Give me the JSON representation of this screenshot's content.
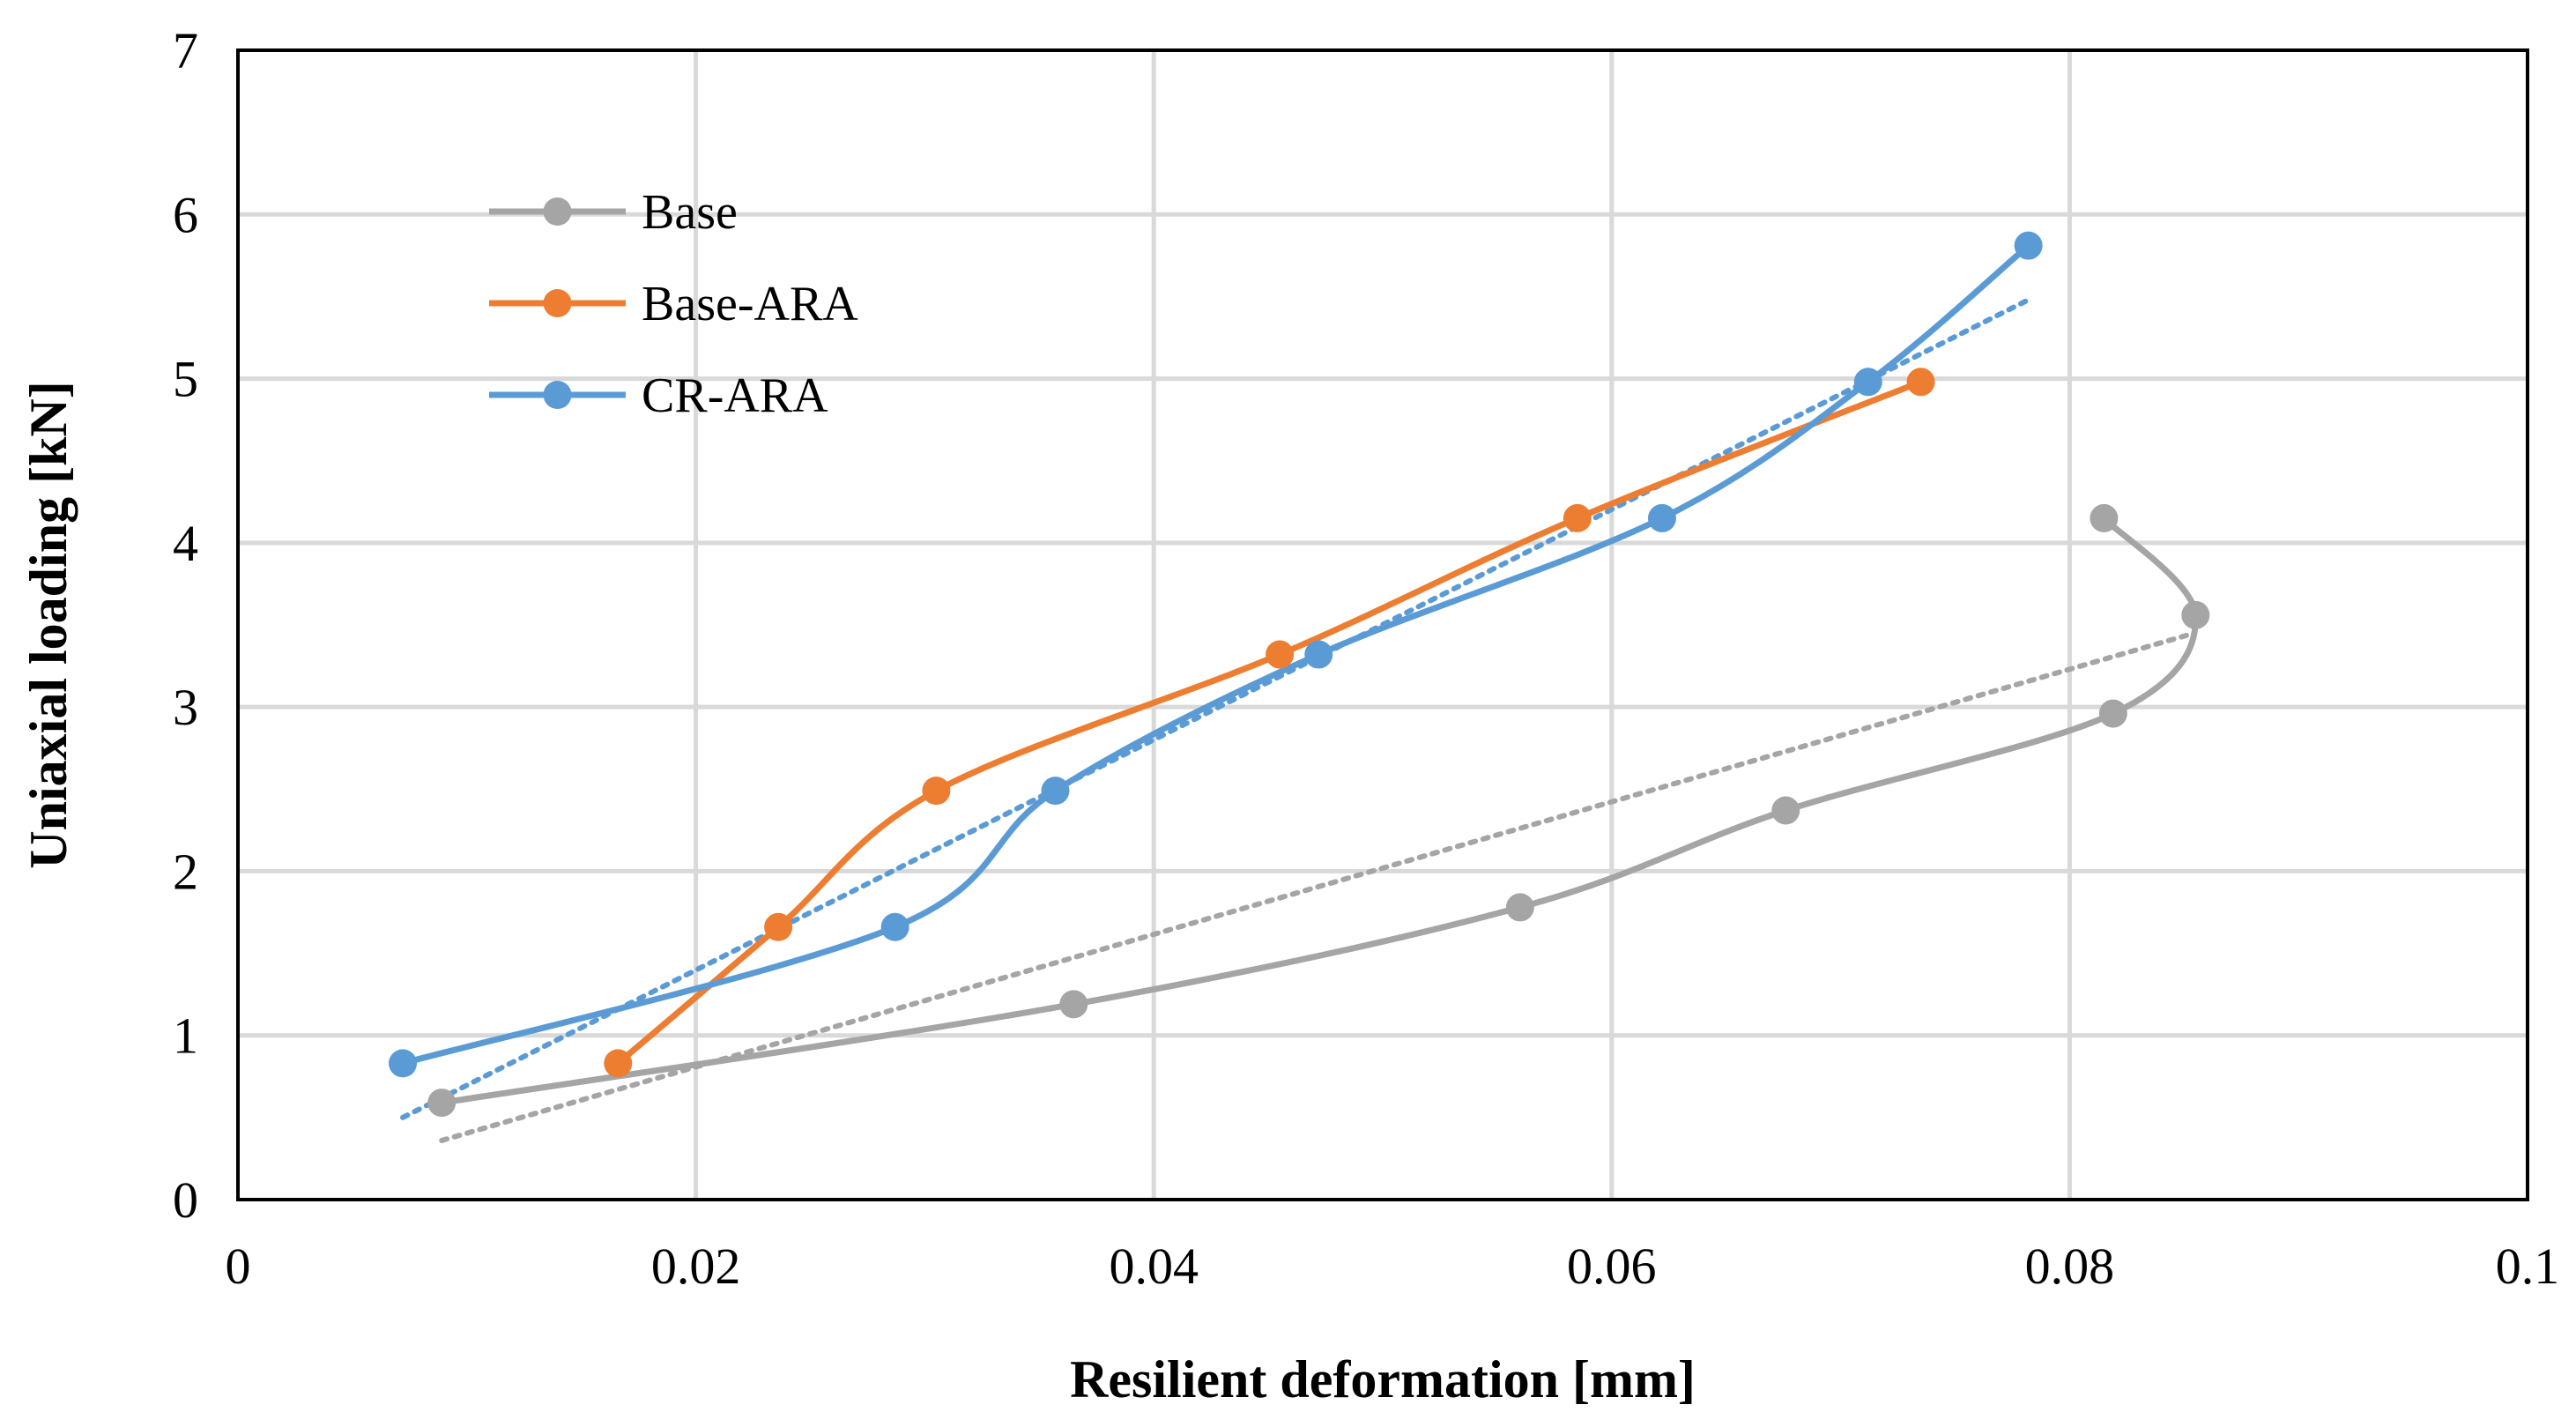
{
  "chart_data": {
    "type": "line",
    "title": "",
    "xlabel": "Resilient deformation [mm]",
    "ylabel": "Uniaxial loading [kN]",
    "xlim": [
      0,
      0.1
    ],
    "ylim": [
      0,
      7
    ],
    "x_ticks": [
      0,
      0.02,
      0.04,
      0.06,
      0.08,
      0.1
    ],
    "x_tick_labels": [
      "0",
      "0.02",
      "0.04",
      "0.06",
      "0.08",
      "0.1"
    ],
    "y_ticks": [
      0,
      1,
      2,
      3,
      4,
      5,
      6,
      7
    ],
    "y_tick_labels": [
      "0",
      "1",
      "2",
      "3",
      "4",
      "5",
      "6",
      "7"
    ],
    "grid": true,
    "legend_position": "top-left",
    "series": [
      {
        "name": "Base",
        "color": "#a5a5a5",
        "x": [
          0.0089,
          0.0365,
          0.056,
          0.0676,
          0.0819,
          0.0855,
          0.0815
        ],
        "y": [
          0.59,
          1.19,
          1.78,
          2.37,
          2.96,
          3.56,
          4.15
        ],
        "trendline": {
          "type": "linear",
          "x_range": [
            0.0089,
            0.0852
          ],
          "y_values": [
            0.36,
            3.44
          ]
        }
      },
      {
        "name": "Base-ARA",
        "color": "#ed7d31",
        "x": [
          0.0166,
          0.0236,
          0.0305,
          0.0455,
          0.0585,
          0.0735
        ],
        "y": [
          0.83,
          1.66,
          2.49,
          3.32,
          4.15,
          4.98
        ],
        "trendline": null
      },
      {
        "name": "CR-ARA",
        "color": "#5b9bd5",
        "x": [
          0.0072,
          0.0287,
          0.0357,
          0.0472,
          0.0622,
          0.0712,
          0.0782
        ],
        "y": [
          0.83,
          1.66,
          2.49,
          3.32,
          4.15,
          4.98,
          5.81
        ],
        "trendline": {
          "type": "linear",
          "x_range": [
            0.0072,
            0.0782
          ],
          "y_values": [
            0.5,
            5.48
          ]
        }
      }
    ]
  }
}
